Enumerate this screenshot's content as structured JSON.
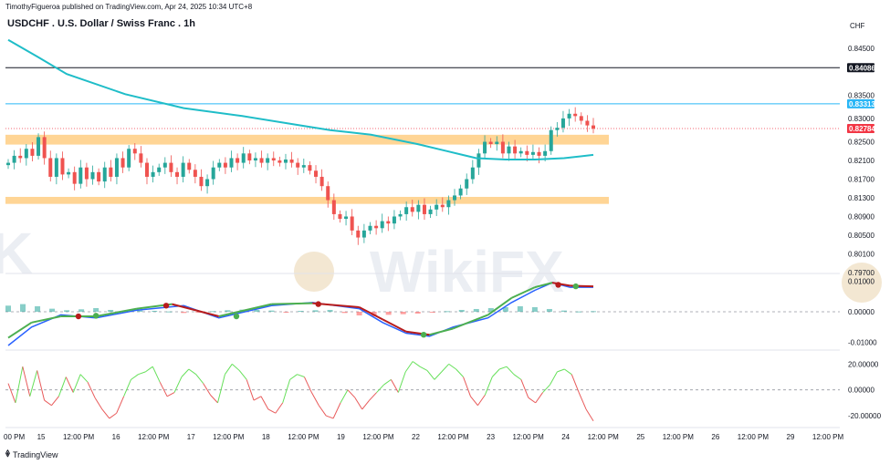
{
  "header": {
    "published": "TimothyFigueroa published on TradingView.com, Apr 24, 2025 10:34 UTC+8",
    "title": "USDCHF . U.S. Dollar / Swiss Franc . 1h",
    "currency": "CHF"
  },
  "footer": {
    "brand": "TradingView",
    "logo_icon": "tradingview-logo-icon"
  },
  "watermark": "WikiFX",
  "colors": {
    "up": "#26a69a",
    "down": "#ef5350",
    "ma": "#1fbdc8",
    "zone": "#ffd08a",
    "black_line": "#131722",
    "blue_line": "#29b6f6",
    "current_price": "#f23645",
    "macd_line": "#2962ff",
    "signal_up": "#4caf50",
    "signal_down": "#b71c1c",
    "osc_up": "#66e05a",
    "osc_down": "#e85a5a"
  },
  "chart_data": [
    {
      "type": "candlestick",
      "name": "price",
      "x_axis_labels": [
        "00 PM",
        "15",
        "12:00 PM",
        "16",
        "12:00 PM",
        "17",
        "12:00 PM",
        "18",
        "12:00 PM",
        "19",
        "12:00 PM",
        "22",
        "12:00 PM",
        "23",
        "12:00 PM",
        "24",
        "12:00 PM",
        "25",
        "12:00 PM",
        "26",
        "12:00 PM",
        "29",
        "12:00 PM"
      ],
      "y_ticks": [
        0.845,
        0.835,
        0.83,
        0.825,
        0.821,
        0.817,
        0.813,
        0.809,
        0.805,
        0.801,
        0.797
      ],
      "y_tick_labels": [
        "0.84500",
        "0.83500",
        "0.83000",
        "0.82500",
        "0.82100",
        "0.81700",
        "0.81300",
        "0.80900",
        "0.80500",
        "0.80100",
        "0.79700"
      ],
      "ylim": [
        0.7968,
        0.8495
      ],
      "horizontal_lines": [
        {
          "value": 0.84086,
          "label": "0.84086"
        },
        {
          "value": 0.83313,
          "label": "0.83313"
        }
      ],
      "current_price": {
        "value": 0.82784,
        "label": "0.82784"
      },
      "zones": [
        {
          "from": 0.8244,
          "to": 0.8265
        },
        {
          "from": 0.8117,
          "to": 0.8132
        }
      ],
      "close_path": [
        0.8205,
        0.822,
        0.8215,
        0.8235,
        0.822,
        0.826,
        0.8215,
        0.8175,
        0.8215,
        0.818,
        0.8185,
        0.816,
        0.8195,
        0.817,
        0.8185,
        0.8165,
        0.8195,
        0.8175,
        0.8215,
        0.8195,
        0.8235,
        0.8225,
        0.8205,
        0.8175,
        0.8185,
        0.8195,
        0.8205,
        0.8185,
        0.8175,
        0.8205,
        0.819,
        0.8175,
        0.8155,
        0.817,
        0.8195,
        0.8205,
        0.8195,
        0.8215,
        0.8205,
        0.8225,
        0.821,
        0.8215,
        0.8205,
        0.8215,
        0.821,
        0.8205,
        0.8212,
        0.8205,
        0.8195,
        0.82,
        0.8188,
        0.8175,
        0.8155,
        0.8125,
        0.8095,
        0.8085,
        0.809,
        0.806,
        0.8045,
        0.806,
        0.807,
        0.8065,
        0.808,
        0.8075,
        0.809,
        0.8095,
        0.811,
        0.81,
        0.8115,
        0.8095,
        0.8105,
        0.8115,
        0.811,
        0.8125,
        0.8135,
        0.815,
        0.817,
        0.8195,
        0.8225,
        0.825,
        0.8245,
        0.825,
        0.8225,
        0.824,
        0.8225,
        0.823,
        0.8222,
        0.8228,
        0.822,
        0.823,
        0.8275,
        0.828,
        0.83,
        0.831,
        0.8305,
        0.8295,
        0.8285,
        0.8278
      ],
      "ma_points": [
        [
          0,
          0.8468
        ],
        [
          0.05,
          0.8432
        ],
        [
          0.1,
          0.8395
        ],
        [
          0.2,
          0.8352
        ],
        [
          0.3,
          0.8322
        ],
        [
          0.4,
          0.8305
        ],
        [
          0.5,
          0.8285
        ],
        [
          0.55,
          0.8275
        ],
        [
          0.62,
          0.8265
        ],
        [
          0.7,
          0.8245
        ],
        [
          0.75,
          0.823
        ],
        [
          0.8,
          0.8215
        ],
        [
          0.85,
          0.8212
        ],
        [
          0.9,
          0.8212
        ],
        [
          0.95,
          0.8215
        ],
        [
          1,
          0.8222
        ]
      ]
    },
    {
      "type": "line",
      "name": "macd",
      "y_ticks": [
        0.01,
        0.0,
        -0.01
      ],
      "y_tick_labels": [
        "0.01000",
        "0.00000",
        "-0.01000"
      ],
      "ylim": [
        -0.0125,
        0.0125
      ],
      "macd_line": [
        [
          0,
          -0.011
        ],
        [
          0.04,
          -0.005
        ],
        [
          0.09,
          -0.001
        ],
        [
          0.15,
          -0.002
        ],
        [
          0.22,
          0.0005
        ],
        [
          0.3,
          0.002
        ],
        [
          0.36,
          -0.002
        ],
        [
          0.45,
          0.002
        ],
        [
          0.52,
          0.003
        ],
        [
          0.6,
          0.001
        ],
        [
          0.64,
          -0.0035
        ],
        [
          0.68,
          -0.007
        ],
        [
          0.72,
          -0.008
        ],
        [
          0.76,
          -0.005
        ],
        [
          0.82,
          -0.002
        ],
        [
          0.86,
          0.003
        ],
        [
          0.9,
          0.007
        ],
        [
          0.93,
          0.0095
        ],
        [
          0.96,
          0.008
        ],
        [
          1,
          0.008
        ]
      ],
      "signal_line": [
        [
          0,
          -0.0085
        ],
        [
          0.04,
          -0.0035
        ],
        [
          0.09,
          -0.0015
        ],
        [
          0.15,
          -0.0015
        ],
        [
          0.22,
          0.001
        ],
        [
          0.28,
          0.0025
        ],
        [
          0.36,
          -0.0015
        ],
        [
          0.45,
          0.0025
        ],
        [
          0.52,
          0.0028
        ],
        [
          0.6,
          0.0015
        ],
        [
          0.64,
          -0.0025
        ],
        [
          0.68,
          -0.0065
        ],
        [
          0.72,
          -0.0075
        ],
        [
          0.76,
          -0.0055
        ],
        [
          0.82,
          -0.001
        ],
        [
          0.86,
          0.0045
        ],
        [
          0.9,
          0.008
        ],
        [
          0.93,
          0.0095
        ],
        [
          0.96,
          0.0085
        ],
        [
          1,
          0.0083
        ]
      ],
      "signal_markers": [
        [
          0.12,
          -0.0015,
          "down"
        ],
        [
          0.15,
          -0.0013,
          "up"
        ],
        [
          0.27,
          0.002,
          "down"
        ],
        [
          0.39,
          -0.0015,
          "up"
        ],
        [
          0.53,
          0.0025,
          "down"
        ],
        [
          0.71,
          -0.0075,
          "up"
        ],
        [
          0.94,
          0.0088,
          "down"
        ],
        [
          0.97,
          0.0083,
          "up"
        ]
      ],
      "histogram": [
        0.002,
        0.0025,
        0.0018,
        0.001,
        0.0005,
        0.0008,
        0.0012,
        0.0006,
        -0.0002,
        0.0004,
        0.0003,
        0.0001,
        -0.0004,
        -0.0003,
        0.0002,
        0.0005,
        0.0007,
        0.0006,
        0.0004,
        -0.0002,
        0.0003,
        0.0005,
        0.0006,
        -0.0004,
        -0.0012,
        -0.0015,
        -0.001,
        -0.0008,
        -0.0006,
        -0.0003,
        0.0002,
        0.0006,
        0.0009,
        0.0012,
        0.0015,
        0.0018,
        0.0015,
        0.0009,
        0.0004,
        0.0001,
        0.0002
      ]
    },
    {
      "type": "line",
      "name": "oscillator",
      "y_ticks": [
        20,
        0,
        -20
      ],
      "y_tick_labels": [
        "20.00000",
        "0.00000",
        "-20.00000"
      ],
      "ylim": [
        -27,
        28
      ],
      "values": [
        5,
        -10,
        18,
        -5,
        15,
        -8,
        -12,
        -5,
        10,
        -2,
        12,
        6,
        -6,
        -15,
        -22,
        -18,
        -5,
        8,
        12,
        14,
        18,
        6,
        -5,
        -2,
        10,
        16,
        12,
        5,
        -4,
        -10,
        12,
        20,
        15,
        8,
        -8,
        -5,
        -15,
        -18,
        -10,
        8,
        12,
        10,
        -2,
        -12,
        -20,
        -22,
        -10,
        0,
        -6,
        -15,
        -8,
        -2,
        4,
        8,
        -2,
        14,
        22,
        18,
        15,
        8,
        14,
        20,
        16,
        10,
        -5,
        -12,
        -4,
        10,
        16,
        18,
        12,
        8,
        -6,
        -10,
        -2,
        4,
        14,
        16,
        12,
        -2,
        -15,
        -24
      ]
    }
  ]
}
